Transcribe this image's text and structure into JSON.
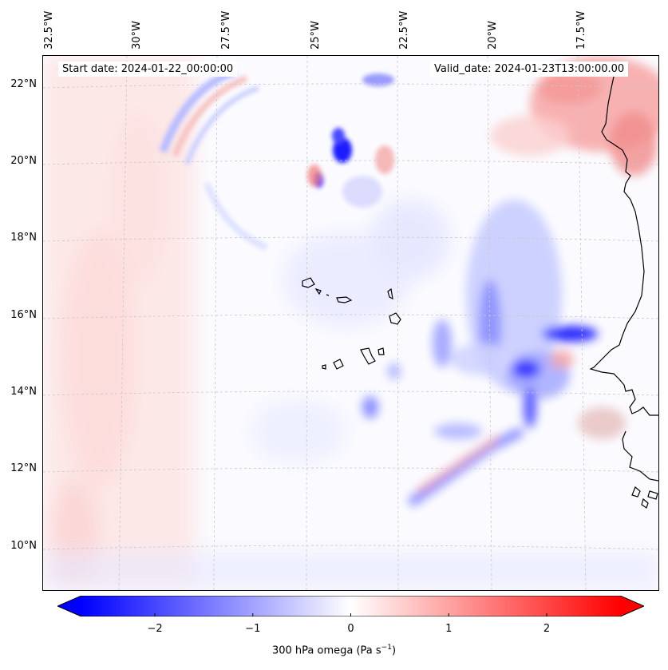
{
  "map": {
    "field": "300 hPa omega",
    "units": "Pa s⁻¹",
    "colormap": "bwr",
    "lon_labels": [
      "32.5°W",
      "30°W",
      "27.5°W",
      "25°W",
      "22.5°W",
      "20°W",
      "17.5°W"
    ],
    "lat_labels": [
      "22°N",
      "20°N",
      "18°N",
      "16°N",
      "14°N",
      "12°N",
      "10°N"
    ],
    "start_date_text": "Start date: 2024-01-22_00:00:00",
    "valid_date_text": "Valid_date: 2024-01-23T13:00:00.00"
  },
  "colorbar": {
    "min": -2.75,
    "max": 2.75,
    "ticks": [
      "−2",
      "−1",
      "0",
      "1",
      "2"
    ],
    "tick_values": [
      -2,
      -1,
      0,
      1,
      2
    ],
    "label": "300 hPa omega (Pa s",
    "label_sup": "−1",
    "label_end": ")",
    "colors": {
      "neg": "#0000ff",
      "mid": "#ffffff",
      "pos": "#ff0000"
    }
  }
}
